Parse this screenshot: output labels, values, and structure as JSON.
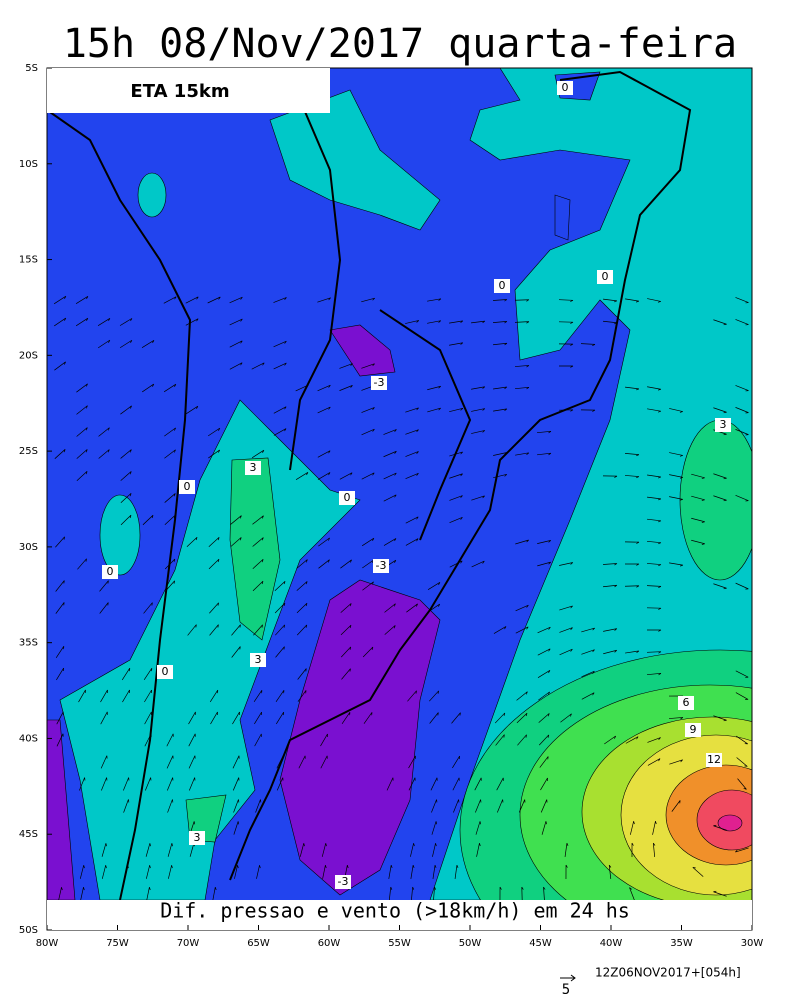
{
  "title": "15h 08/Nov/2017 quarta-feira",
  "model": "ETA 15km",
  "caption": "Dif. pressao e vento (>18km/h) em 24 hs",
  "run": "12Z06NOV2017+[054h]",
  "vector_scale": "5",
  "lat_labels": [
    "5S",
    "10S",
    "15S",
    "20S",
    "25S",
    "30S",
    "35S",
    "40S",
    "45S",
    "50S"
  ],
  "lon_labels": [
    "80W",
    "75W",
    "70W",
    "65W",
    "60W",
    "55W",
    "50W",
    "45W",
    "40W",
    "35W",
    "30W"
  ],
  "contour_labels": [
    "0",
    "0",
    "0",
    "-3",
    "3",
    "3",
    "0",
    "0",
    "0",
    "-3",
    "3",
    "0",
    "6",
    "9",
    "12",
    "3",
    "-3"
  ]
}
